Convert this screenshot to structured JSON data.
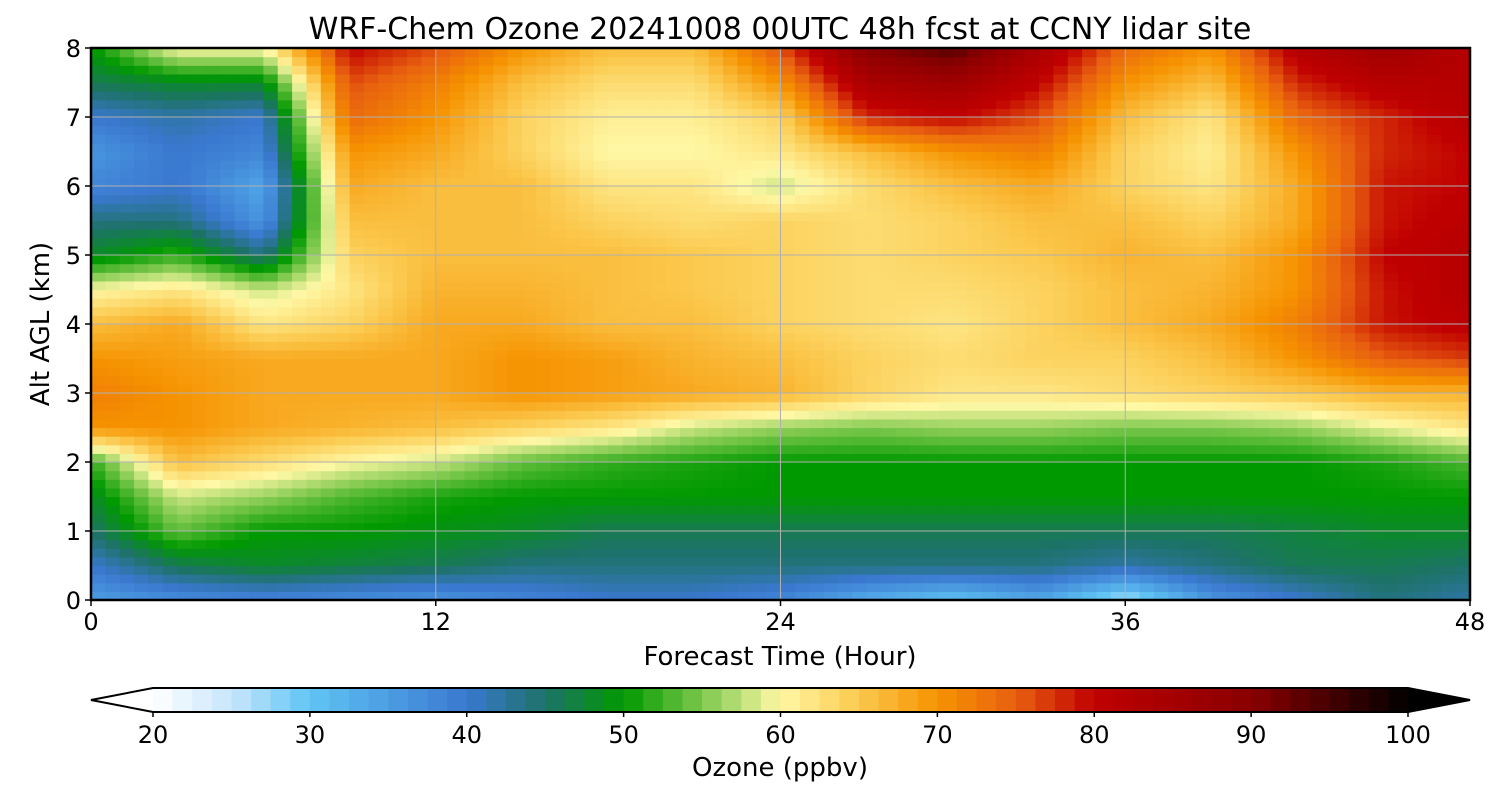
{
  "chart_data": {
    "type": "heatmap",
    "title": "WRF-Chem Ozone  20241008 00UTC 48h fcst at CCNY lidar site",
    "xlabel": "Forecast Time (Hour)",
    "ylabel": "Alt AGL (km)",
    "xlim": [
      0,
      48
    ],
    "ylim": [
      0,
      8
    ],
    "xticks": [
      0,
      12,
      24,
      36,
      48
    ],
    "xtick_labels": [
      "0",
      "12",
      "24",
      "36",
      "48"
    ],
    "yticks": [
      0,
      1,
      2,
      3,
      4,
      5,
      6,
      7,
      8
    ],
    "ytick_labels": [
      "0",
      "1",
      "2",
      "3",
      "4",
      "5",
      "6",
      "7",
      "8"
    ],
    "grid": true,
    "x": [
      0,
      3,
      6,
      9,
      12,
      15,
      18,
      21,
      24,
      27,
      30,
      33,
      36,
      39,
      42,
      45,
      48
    ],
    "y": [
      0,
      0.5,
      1,
      1.5,
      2,
      2.5,
      3,
      3.5,
      4,
      4.5,
      5,
      5.5,
      6,
      6.5,
      7,
      7.5,
      8
    ],
    "z": [
      [
        35,
        37,
        38,
        37,
        36,
        38,
        40,
        40,
        38,
        33,
        30,
        34,
        26,
        36,
        40,
        44,
        42
      ],
      [
        40,
        46,
        48,
        47,
        46,
        44,
        44,
        44,
        44,
        44,
        44,
        44,
        42,
        44,
        46,
        46,
        45
      ],
      [
        45,
        54,
        50,
        50,
        49,
        48,
        46,
        46,
        46,
        46,
        46,
        46,
        46,
        46,
        47,
        48,
        48
      ],
      [
        48,
        58,
        56,
        53,
        51,
        50,
        50,
        50,
        50,
        50,
        50,
        50,
        50,
        50,
        50,
        50,
        50
      ],
      [
        52,
        66,
        63,
        60,
        58,
        54,
        52,
        51,
        50,
        50,
        50,
        50,
        50,
        50,
        50,
        51,
        53
      ],
      [
        70,
        70,
        68,
        67,
        66,
        64,
        62,
        58,
        56,
        55,
        56,
        56,
        55,
        55,
        56,
        59,
        62
      ],
      [
        72,
        70,
        68,
        68,
        68,
        70,
        69,
        68,
        67,
        64,
        62,
        62,
        63,
        64,
        65,
        67,
        67
      ],
      [
        70,
        69,
        68,
        68,
        68,
        70,
        69,
        67,
        66,
        64,
        63,
        64,
        64,
        66,
        70,
        75,
        77
      ],
      [
        66,
        68,
        62,
        64,
        68,
        68,
        66,
        66,
        64,
        63,
        62,
        64,
        66,
        68,
        72,
        79,
        81
      ],
      [
        60,
        62,
        58,
        62,
        67,
        67,
        66,
        65,
        64,
        63,
        63,
        64,
        66,
        67,
        70,
        79,
        82
      ],
      [
        48,
        52,
        44,
        64,
        66,
        66,
        66,
        65,
        64,
        63,
        64,
        65,
        67,
        66,
        70,
        80,
        82
      ],
      [
        44,
        44,
        36,
        66,
        66,
        66,
        64,
        63,
        64,
        63,
        64,
        66,
        66,
        64,
        68,
        79,
        81
      ],
      [
        38,
        40,
        34,
        68,
        66,
        66,
        62,
        62,
        58,
        63,
        66,
        68,
        64,
        62,
        68,
        79,
        80
      ],
      [
        36,
        40,
        38,
        70,
        68,
        64,
        60,
        60,
        62,
        66,
        70,
        72,
        64,
        61,
        70,
        78,
        80
      ],
      [
        40,
        42,
        40,
        74,
        70,
        64,
        61,
        61,
        64,
        78,
        80,
        76,
        66,
        62,
        74,
        78,
        82
      ],
      [
        46,
        48,
        48,
        76,
        72,
        66,
        63,
        63,
        70,
        84,
        86,
        80,
        70,
        66,
        78,
        82,
        82
      ],
      [
        50,
        60,
        60,
        80,
        76,
        70,
        66,
        66,
        76,
        90,
        94,
        84,
        74,
        70,
        82,
        86,
        82
      ]
    ],
    "colorbar": {
      "label": "Ozone  (ppbv)",
      "range": [
        20,
        100
      ],
      "tick_labels": [
        "20",
        "30",
        "40",
        "50",
        "60",
        "70",
        "80",
        "90",
        "100"
      ],
      "tick_values": [
        20,
        30,
        40,
        50,
        60,
        70,
        80,
        90,
        100
      ],
      "extend": "both",
      "colors": [
        {
          "v": 20,
          "c": "#ffffff"
        },
        {
          "v": 25,
          "c": "#c8e6fb"
        },
        {
          "v": 30,
          "c": "#5fc4f4"
        },
        {
          "v": 40,
          "c": "#3a78d0"
        },
        {
          "v": 45,
          "c": "#1d7268"
        },
        {
          "v": 50,
          "c": "#009900"
        },
        {
          "v": 55,
          "c": "#7cc84c"
        },
        {
          "v": 60,
          "c": "#fff8a6"
        },
        {
          "v": 65,
          "c": "#fbc94e"
        },
        {
          "v": 70,
          "c": "#f69300"
        },
        {
          "v": 75,
          "c": "#e86010"
        },
        {
          "v": 80,
          "c": "#c00000"
        },
        {
          "v": 90,
          "c": "#8a0000"
        },
        {
          "v": 100,
          "c": "#000000"
        }
      ],
      "under_color": "#ffffff",
      "over_color": "#000000"
    }
  }
}
